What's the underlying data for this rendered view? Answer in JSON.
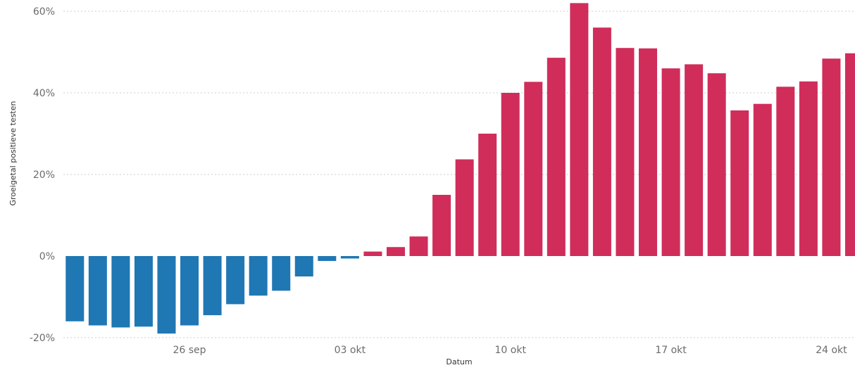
{
  "chart_data": {
    "type": "bar",
    "xlabel": "Datum",
    "ylabel": "Groeigetal positieve testen",
    "ylim": [
      -20,
      60
    ],
    "y_ticks": [
      {
        "value": -20,
        "label": "-20%"
      },
      {
        "value": 0,
        "label": "0%"
      },
      {
        "value": 20,
        "label": "20%"
      },
      {
        "value": 40,
        "label": "40%"
      },
      {
        "value": 60,
        "label": "60%"
      }
    ],
    "x_ticks": [
      {
        "index": 5,
        "label": "26 sep"
      },
      {
        "index": 12,
        "label": "03 okt"
      },
      {
        "index": 19,
        "label": "10 okt"
      },
      {
        "index": 26,
        "label": "17 okt"
      },
      {
        "index": 33,
        "label": "24 okt"
      }
    ],
    "grid": "horizontal dotted",
    "colors": {
      "negative": "#1f77b4",
      "positive": "#d02d5a",
      "grid": "#cccccc"
    },
    "values": [
      -16,
      -17,
      -17.5,
      -17.3,
      -19,
      -17,
      -14.5,
      -11.8,
      -9.7,
      -8.5,
      -5,
      -1.2,
      -0.6,
      1.1,
      2.2,
      4.8,
      15,
      23.7,
      30,
      40,
      42.7,
      48.6,
      62,
      56,
      51,
      50.9,
      46,
      47,
      44.8,
      35.7,
      37.3,
      41.5,
      42.8,
      48.4,
      49.7
    ]
  }
}
